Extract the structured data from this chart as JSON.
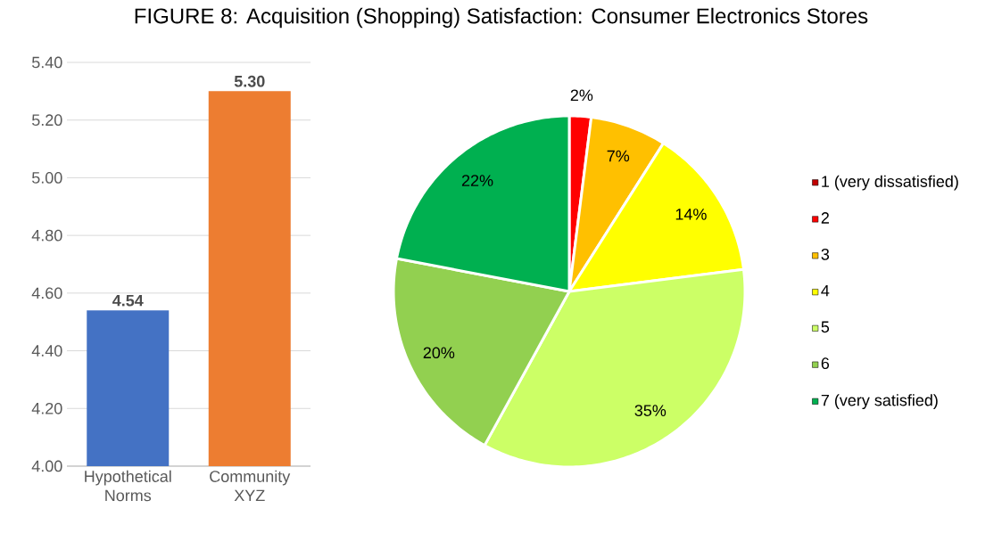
{
  "chart_data": [
    {
      "type": "bar",
      "title": "FIGURE 8: Acquisition (Shopping) Satisfaction: Consumer Electronics Stores",
      "categories": [
        "Hypothetical Norms",
        "Community XYZ"
      ],
      "values": [
        4.54,
        5.3
      ],
      "colors": [
        "#4472c4",
        "#ed7d31"
      ],
      "value_labels": [
        "4.54",
        "5.30"
      ],
      "ylim": [
        4,
        5.4
      ],
      "yticks": [
        {
          "value": 4,
          "label": "4.00"
        },
        {
          "value": 4.2,
          "label": "4.20"
        },
        {
          "value": 4.4,
          "label": "4.40"
        },
        {
          "value": 4.6,
          "label": "4.60"
        },
        {
          "value": 4.8,
          "label": "4.80"
        },
        {
          "value": 5,
          "label": "5.00"
        },
        {
          "value": 5.2,
          "label": "5.20"
        },
        {
          "value": 5.4,
          "label": "5.40"
        }
      ],
      "grid": "y"
    },
    {
      "type": "pie",
      "categories": [
        "1 (very dissatisfied)",
        "2",
        "3",
        "4",
        "5",
        "6",
        "7 (very satisfied)"
      ],
      "values": [
        0,
        2,
        7,
        14,
        35,
        20,
        22
      ],
      "colors": [
        "#c00000",
        "#ff0000",
        "#ffc000",
        "#ffff00",
        "#ccff66",
        "#92d050",
        "#00b050"
      ],
      "value_labels": [
        null,
        "2%",
        "7%",
        "14%",
        "35%",
        "20%",
        "22%"
      ],
      "legend": "right"
    }
  ]
}
